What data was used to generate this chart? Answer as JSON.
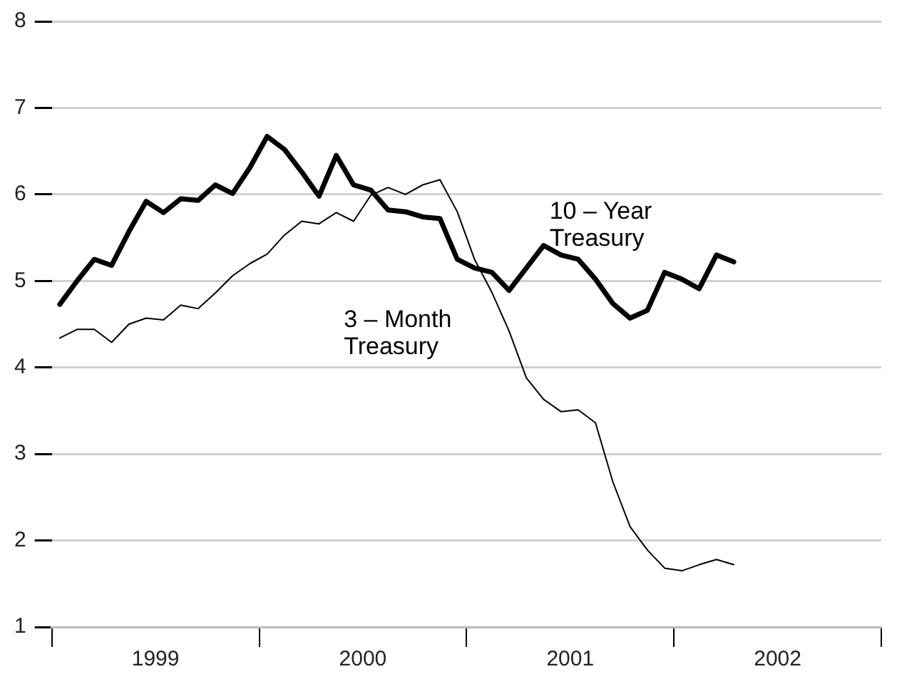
{
  "chart_data": {
    "type": "line",
    "x": [
      "1999-01-15",
      "1999-02-15",
      "1999-03-15",
      "1999-04-15",
      "1999-05-15",
      "1999-06-15",
      "1999-07-15",
      "1999-08-15",
      "1999-09-15",
      "1999-10-15",
      "1999-11-15",
      "1999-12-15",
      "2000-01-15",
      "2000-02-15",
      "2000-03-15",
      "2000-04-15",
      "2000-05-15",
      "2000-06-15",
      "2000-07-15",
      "2000-08-15",
      "2000-09-15",
      "2000-10-15",
      "2000-11-15",
      "2000-12-15",
      "2001-01-15",
      "2001-02-15",
      "2001-03-15",
      "2001-04-15",
      "2001-05-15",
      "2001-06-15",
      "2001-07-15",
      "2001-08-15",
      "2001-09-15",
      "2001-10-15",
      "2001-11-15",
      "2001-12-15",
      "2002-01-15",
      "2002-02-15",
      "2002-03-15",
      "2002-04-15"
    ],
    "series": [
      {
        "name": "10 – Year Treasury",
        "color": "#000000",
        "values": [
          4.73,
          5.0,
          5.25,
          5.18,
          5.57,
          5.92,
          5.79,
          5.95,
          5.93,
          6.11,
          6.01,
          6.31,
          6.67,
          6.52,
          6.26,
          5.98,
          6.45,
          6.11,
          6.05,
          5.82,
          5.8,
          5.74,
          5.72,
          5.25,
          5.15,
          5.1,
          4.89,
          5.15,
          5.41,
          5.3,
          5.25,
          5.02,
          4.74,
          4.57,
          4.66,
          5.1,
          5.02,
          4.91,
          5.3,
          5.22
        ]
      },
      {
        "name": "3 – Month Treasury",
        "color": "#000000",
        "values": [
          4.34,
          4.44,
          4.44,
          4.29,
          4.5,
          4.57,
          4.55,
          4.72,
          4.68,
          4.86,
          5.06,
          5.2,
          5.31,
          5.53,
          5.69,
          5.66,
          5.79,
          5.69,
          5.99,
          6.08,
          6.0,
          6.11,
          6.17,
          5.8,
          5.25,
          4.87,
          4.42,
          3.88,
          3.63,
          3.49,
          3.51,
          3.36,
          2.68,
          2.16,
          1.89,
          1.68,
          1.65,
          1.72,
          1.78,
          1.72
        ]
      }
    ],
    "xlim": [
      "1999",
      "2003"
    ],
    "xticks": [
      {
        "value": "1999",
        "label": null
      },
      {
        "value": "1999-07",
        "label": "1999"
      },
      {
        "value": "2000",
        "label": null
      },
      {
        "value": "2000-07",
        "label": "2000"
      },
      {
        "value": "2001",
        "label": null
      },
      {
        "value": "2001-07",
        "label": "2001"
      },
      {
        "value": "2002",
        "label": null
      },
      {
        "value": "2002-07",
        "label": "2002"
      },
      {
        "value": "2003",
        "label": null
      }
    ],
    "ylim": [
      1,
      8
    ],
    "yticks": [
      1,
      2,
      3,
      4,
      5,
      6,
      7,
      8
    ],
    "grid": "y",
    "legend": false,
    "marker": "none",
    "line_style": "solid"
  }
}
